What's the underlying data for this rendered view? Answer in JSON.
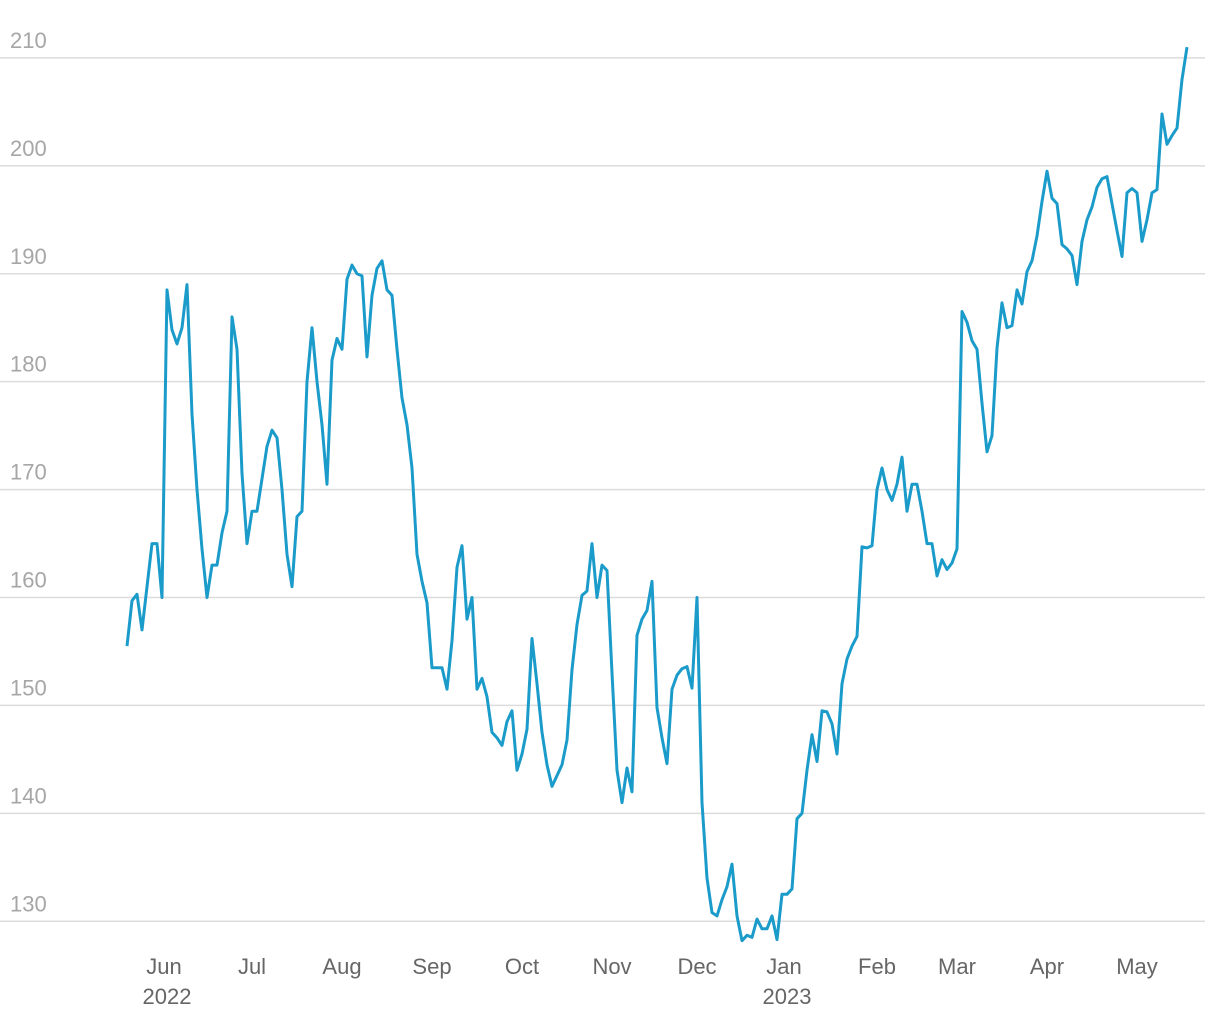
{
  "chart_data": {
    "type": "line",
    "color": "#1b9bc9",
    "grid": true,
    "ylim": [
      127.8,
      213.7
    ],
    "yticks": [
      130,
      140,
      150,
      160,
      170,
      180,
      190,
      200,
      210
    ],
    "categories": [
      null,
      null,
      null,
      null,
      null,
      null,
      null,
      null,
      "Jun 2022",
      null,
      null,
      null,
      null,
      null,
      null,
      null,
      null,
      null,
      null,
      null,
      null,
      null,
      null,
      null,
      null,
      "Jul",
      null,
      null,
      null,
      null,
      null,
      null,
      null,
      null,
      null,
      null,
      null,
      null,
      null,
      null,
      null,
      null,
      null,
      "Aug",
      null,
      null,
      null,
      null,
      null,
      null,
      null,
      null,
      null,
      null,
      null,
      null,
      null,
      null,
      null,
      null,
      null,
      "Sep",
      null,
      null,
      null,
      null,
      null,
      null,
      null,
      null,
      null,
      null,
      null,
      null,
      null,
      null,
      null,
      null,
      null,
      "Oct",
      null,
      null,
      null,
      null,
      null,
      null,
      null,
      null,
      null,
      null,
      null,
      null,
      null,
      null,
      null,
      null,
      null,
      "Nov",
      null,
      null,
      null,
      null,
      null,
      null,
      null,
      null,
      null,
      null,
      null,
      null,
      null,
      null,
      null,
      null,
      "Dec",
      null,
      null,
      null,
      null,
      null,
      null,
      null,
      null,
      null,
      null,
      null,
      null,
      null,
      null,
      null,
      null,
      null,
      "Jan 2023",
      null,
      null,
      null,
      null,
      null,
      null,
      null,
      null,
      null,
      null,
      null,
      null,
      null,
      null,
      null,
      null,
      null,
      "Feb",
      null,
      null,
      null,
      null,
      null,
      null,
      null,
      null,
      null,
      null,
      null,
      null,
      null,
      null,
      null,
      "Mar",
      null,
      null,
      null,
      null,
      null,
      null,
      null,
      null,
      null,
      null,
      null,
      null,
      null,
      null,
      null,
      null,
      null,
      "Apr",
      null,
      null,
      null,
      null,
      null,
      null,
      null,
      null,
      null,
      null,
      null,
      null,
      null,
      null,
      null,
      null,
      null,
      "May",
      null,
      null,
      null,
      null,
      null,
      null,
      null,
      null,
      null,
      null
    ],
    "values": [
      155.5,
      159.7,
      160.3,
      157,
      161,
      165,
      165,
      160,
      188.5,
      184.8,
      183.5,
      185,
      189,
      177,
      170,
      164.5,
      160,
      163,
      163,
      166,
      168,
      186,
      183,
      171.5,
      165,
      168,
      168,
      171,
      174,
      175.5,
      174.8,
      170,
      164,
      161,
      167.5,
      168,
      180,
      185,
      180,
      176,
      170.5,
      182,
      184,
      183,
      189.5,
      190.8,
      190,
      189.8,
      182.3,
      188,
      190.5,
      191.2,
      188.5,
      188,
      183,
      178.5,
      176,
      172,
      164,
      161.5,
      159.5,
      153.5,
      153.5,
      153.5,
      151.5,
      156,
      162.8,
      164.8,
      158,
      160,
      151.5,
      152.5,
      150.8,
      147.5,
      147,
      146.3,
      148.5,
      149.5,
      144,
      145.5,
      147.8,
      156.2,
      152,
      147.5,
      144.5,
      142.5,
      143.5,
      144.5,
      146.8,
      153.3,
      157.5,
      160.2,
      160.6,
      165,
      160,
      163,
      162.5,
      153,
      144,
      141,
      144.2,
      142,
      156.5,
      158,
      158.8,
      161.5,
      149.8,
      147,
      144.6,
      151.5,
      152.8,
      153.4,
      153.6,
      151.6,
      160,
      141,
      134,
      130.8,
      130.5,
      132,
      133.2,
      135.3,
      130.5,
      128.2,
      128.7,
      128.5,
      130.2,
      129.3,
      129.3,
      130.5,
      128.3,
      132.5,
      132.5,
      133,
      139.5,
      140,
      144,
      147.3,
      144.8,
      149.5,
      149.4,
      148.3,
      145.5,
      152,
      154.3,
      155.5,
      156.4,
      164.7,
      164.6,
      164.8,
      170,
      172,
      170,
      169,
      170.5,
      173,
      168,
      170.5,
      170.5,
      168,
      165,
      165,
      162,
      163.5,
      162.6,
      163.2,
      164.5,
      186.5,
      185.5,
      183.8,
      183,
      178,
      173.5,
      175,
      183.1,
      187.3,
      185,
      185.2,
      188.5,
      187.2,
      190.2,
      191.2,
      193.5,
      196.7,
      199.5,
      197,
      196.5,
      192.7,
      192.3,
      191.7,
      189,
      193,
      195,
      196.2,
      198,
      198.8,
      199,
      196.5,
      194,
      191.6,
      197.5,
      197.9,
      197.5,
      193,
      195,
      197.5,
      197.8,
      204.8,
      202,
      202.8,
      203.5,
      208,
      211
    ]
  }
}
